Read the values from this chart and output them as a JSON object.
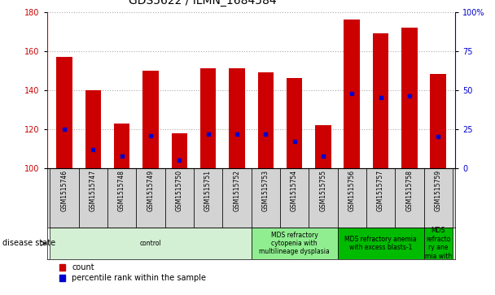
{
  "title": "GDS5622 / ILMN_1684584",
  "samples": [
    "GSM1515746",
    "GSM1515747",
    "GSM1515748",
    "GSM1515749",
    "GSM1515750",
    "GSM1515751",
    "GSM1515752",
    "GSM1515753",
    "GSM1515754",
    "GSM1515755",
    "GSM1515756",
    "GSM1515757",
    "GSM1515758",
    "GSM1515759"
  ],
  "counts": [
    157,
    140,
    123,
    150,
    118,
    151,
    151,
    149,
    146,
    122,
    176,
    169,
    172,
    148
  ],
  "percentile_ranks": [
    25,
    12,
    8,
    21,
    5,
    22,
    22,
    22,
    17,
    8,
    48,
    45,
    46,
    20
  ],
  "ymin": 100,
  "ymax": 180,
  "yticks": [
    100,
    120,
    140,
    160,
    180
  ],
  "right_yticks": [
    0,
    25,
    50,
    75,
    100
  ],
  "bar_color": "#cc0000",
  "dot_color": "#0000cc",
  "bar_width": 0.55,
  "disease_groups": [
    {
      "label": "control",
      "start": 0,
      "end": 7,
      "color": "#d4f0d4"
    },
    {
      "label": "MDS refractory\ncytopenia with\nmultilineage dysplasia",
      "start": 7,
      "end": 10,
      "color": "#90ee90"
    },
    {
      "label": "MDS refractory anemia\nwith excess blasts-1",
      "start": 10,
      "end": 13,
      "color": "#00bb00"
    },
    {
      "label": "MDS\nrefracto\nry ane\nmia with",
      "start": 13,
      "end": 14,
      "color": "#00bb00"
    }
  ],
  "disease_state_label": "disease state",
  "legend_count_label": "count",
  "legend_percentile_label": "percentile rank within the sample",
  "title_fontsize": 10,
  "tick_fontsize": 7,
  "sample_fontsize": 5.5,
  "disease_fontsize": 5.5,
  "legend_fontsize": 7,
  "bg_sample": "#d3d3d3"
}
